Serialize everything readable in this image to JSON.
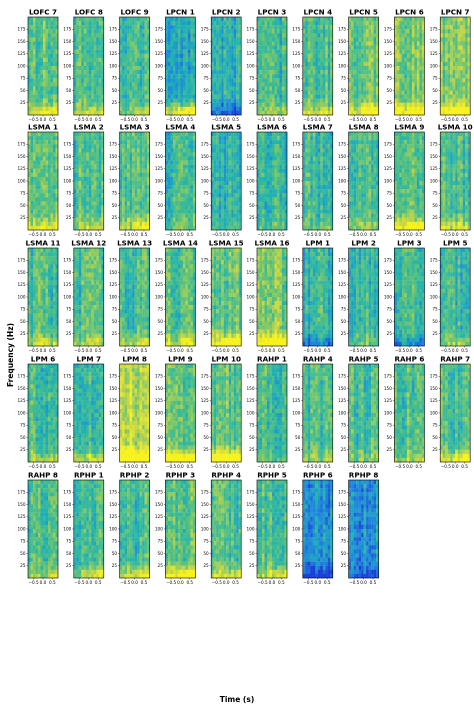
{
  "chart_data": {
    "type": "heatmap",
    "xlabel": "Time (s)",
    "ylabel": "Frequency (Hz)",
    "x_ticks": [
      "−0.5",
      "0.0",
      "0.5"
    ],
    "y_ticks": [
      25,
      50,
      75,
      100,
      125,
      150,
      175
    ],
    "xlim": [
      -0.8,
      0.8
    ],
    "ylim": [
      0,
      200
    ],
    "grid": false,
    "colormap": [
      "#1b3fd6",
      "#1f84e0",
      "#1fb3b3",
      "#5fc27a",
      "#c4d445",
      "#f7f21c"
    ],
    "panels": [
      {
        "title": "LOFC 7",
        "bias": 0.05,
        "low_band": 0.35
      },
      {
        "title": "LOFC 8",
        "bias": 0.0,
        "low_band": 0.25
      },
      {
        "title": "LOFC 9",
        "bias": 0.0,
        "low_band": 0.2
      },
      {
        "title": "LPCN 1",
        "bias": -0.15,
        "low_band": 0.6
      },
      {
        "title": "LPCN 2",
        "bias": -0.1,
        "low_band": -0.3
      },
      {
        "title": "LPCN 3",
        "bias": -0.05,
        "low_band": 0.15
      },
      {
        "title": "LPCN 4",
        "bias": 0.0,
        "low_band": 0.3
      },
      {
        "title": "LPCN 5",
        "bias": 0.1,
        "low_band": 0.4
      },
      {
        "title": "LPCN 6",
        "bias": 0.15,
        "low_band": 0.45
      },
      {
        "title": "LPCN 7",
        "bias": 0.15,
        "low_band": 0.4
      },
      {
        "title": "LSMA 1",
        "bias": 0.05,
        "low_band": 0.3
      },
      {
        "title": "LSMA 2",
        "bias": 0.0,
        "low_band": 0.25
      },
      {
        "title": "LSMA 3",
        "bias": 0.05,
        "low_band": 0.3
      },
      {
        "title": "LSMA 4",
        "bias": -0.05,
        "low_band": 0.15
      },
      {
        "title": "LSMA 5",
        "bias": -0.05,
        "low_band": 0.1
      },
      {
        "title": "LSMA 6",
        "bias": -0.05,
        "low_band": 0.1
      },
      {
        "title": "LSMA 7",
        "bias": -0.05,
        "low_band": 0.15
      },
      {
        "title": "LSMA 8",
        "bias": 0.0,
        "low_band": 0.2
      },
      {
        "title": "LSMA 9",
        "bias": 0.05,
        "low_band": 0.45
      },
      {
        "title": "LSMA 10",
        "bias": 0.0,
        "low_band": 0.3
      },
      {
        "title": "LSMA 11",
        "bias": 0.0,
        "low_band": 0.25
      },
      {
        "title": "LSMA 12",
        "bias": 0.0,
        "low_band": 0.2
      },
      {
        "title": "LSMA 13",
        "bias": 0.0,
        "low_band": 0.25
      },
      {
        "title": "LSMA 14",
        "bias": 0.0,
        "low_band": 0.3
      },
      {
        "title": "LSMA 15",
        "bias": 0.05,
        "low_band": 0.55
      },
      {
        "title": "LSMA 16",
        "bias": 0.1,
        "low_band": 0.6
      },
      {
        "title": "LPM 1",
        "bias": -0.05,
        "low_band": -0.25
      },
      {
        "title": "LPM 2",
        "bias": -0.05,
        "low_band": 0.15
      },
      {
        "title": "LPM 3",
        "bias": -0.05,
        "low_band": -0.25
      },
      {
        "title": "LPM 5",
        "bias": -0.05,
        "low_band": 0.2
      },
      {
        "title": "LPM 6",
        "bias": 0.0,
        "low_band": 0.2
      },
      {
        "title": "LPM 7",
        "bias": 0.0,
        "low_band": 0.3
      },
      {
        "title": "LPM 8",
        "bias": 0.3,
        "low_band": 0.6
      },
      {
        "title": "LPM 9",
        "bias": 0.1,
        "low_band": 0.55
      },
      {
        "title": "LPM 10",
        "bias": 0.05,
        "low_band": 0.7
      },
      {
        "title": "RAHP 1",
        "bias": 0.0,
        "low_band": 0.1
      },
      {
        "title": "RAHP 4",
        "bias": 0.0,
        "low_band": 0.15
      },
      {
        "title": "RAHP 5",
        "bias": 0.0,
        "low_band": 0.15
      },
      {
        "title": "RAHP 6",
        "bias": 0.0,
        "low_band": 0.2
      },
      {
        "title": "RAHP 7",
        "bias": 0.0,
        "low_band": 0.4
      },
      {
        "title": "RAHP 8",
        "bias": 0.0,
        "low_band": 0.2
      },
      {
        "title": "RPHP 1",
        "bias": 0.0,
        "low_band": 0.3
      },
      {
        "title": "RPHP 2",
        "bias": 0.0,
        "low_band": 0.35
      },
      {
        "title": "RPHP 3",
        "bias": 0.05,
        "low_band": 0.45
      },
      {
        "title": "RPHP 4",
        "bias": 0.0,
        "low_band": 0.3
      },
      {
        "title": "RPHP 5",
        "bias": 0.0,
        "low_band": 0.3
      },
      {
        "title": "RPHP 6",
        "bias": -0.25,
        "low_band": -0.3
      },
      {
        "title": "RPHP 8",
        "bias": -0.25,
        "low_band": -0.2
      }
    ]
  }
}
